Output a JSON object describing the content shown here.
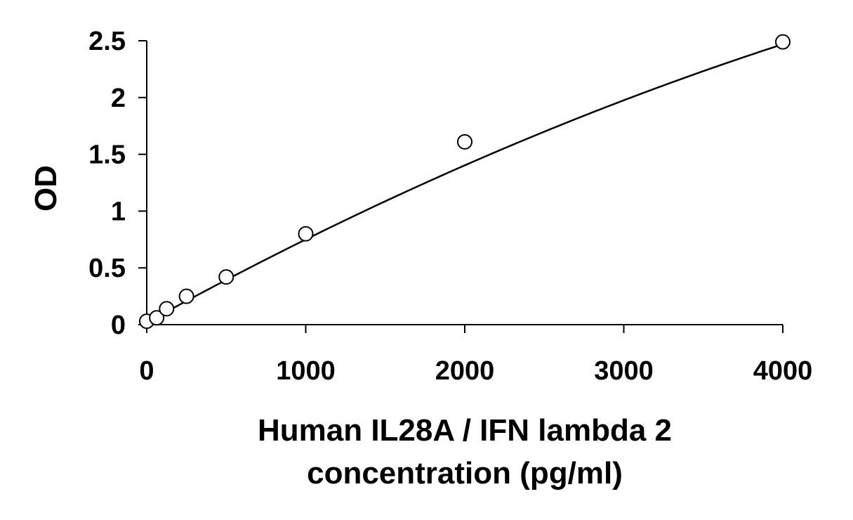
{
  "chart_data": {
    "type": "scatter",
    "xlabel": "Human IL28A / IFN lambda 2",
    "xlabel_line2": "concentration (pg/ml)",
    "ylabel": "OD",
    "xlim": [
      0,
      4000
    ],
    "ylim": [
      0,
      2.5
    ],
    "xticks": [
      0,
      1000,
      2000,
      3000,
      4000
    ],
    "xtick_labels": [
      "0",
      "1000",
      "2000",
      "3000",
      "4000"
    ],
    "yticks": [
      0,
      0.5,
      1,
      1.5,
      2,
      2.5
    ],
    "ytick_labels": [
      "0",
      "0.5",
      "1",
      "1.5",
      "2",
      "2.5"
    ],
    "grid": false,
    "legend": "none",
    "series": [
      {
        "marker": "open-circle",
        "x": [
          0,
          62.5,
          125,
          250,
          500,
          1000,
          2000,
          4000
        ],
        "y": [
          0.03,
          0.06,
          0.14,
          0.25,
          0.42,
          0.8,
          1.61,
          2.49
        ]
      }
    ],
    "fit_curve": {
      "type": "polynomial",
      "coefficients": [
        0.018,
        0.000772,
        -3.98e-08
      ]
    },
    "colors": {
      "marker_stroke": "#000000",
      "marker_fill": "#ffffff",
      "curve": "#000000",
      "axis": "#000000"
    }
  }
}
